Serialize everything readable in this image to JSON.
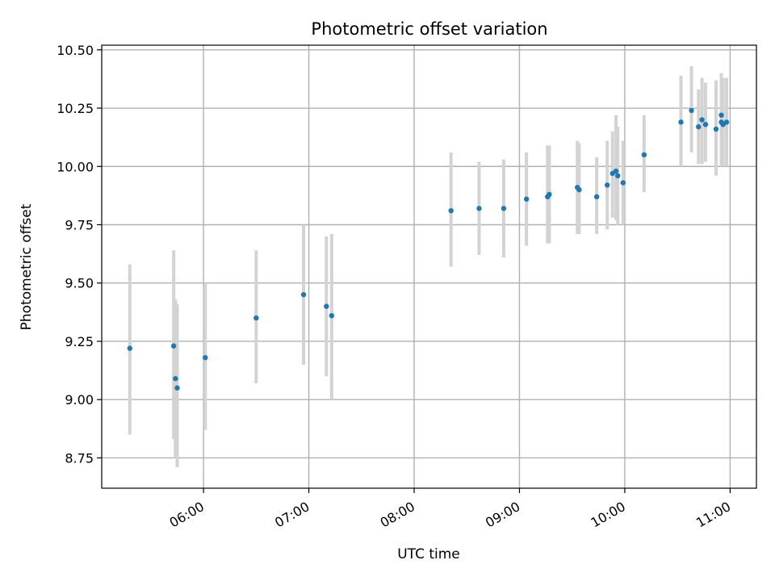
{
  "chart_data": {
    "type": "scatter",
    "title": "Photometric offset variation",
    "xlabel": "UTC time",
    "ylabel": "Photometric offset",
    "xlim": [
      "05:02",
      "11:15"
    ],
    "ylim": [
      8.62,
      10.52
    ],
    "x_ticks": [
      "06:00",
      "07:00",
      "08:00",
      "09:00",
      "10:00",
      "11:00"
    ],
    "y_ticks": [
      "8.75",
      "9.00",
      "9.25",
      "9.50",
      "9.75",
      "10.00",
      "10.25",
      "10.50"
    ],
    "grid": true,
    "colors": {
      "points": "#1f77b4",
      "error_bars": "#d3d3d3",
      "grid": "#b0b0b0"
    },
    "series": [
      {
        "points": [
          {
            "t": "05:18",
            "y": 9.22,
            "lo": 8.85,
            "hi": 9.58
          },
          {
            "t": "05:43",
            "y": 9.23,
            "lo": 8.83,
            "hi": 9.64
          },
          {
            "t": "05:44",
            "y": 9.09,
            "lo": 8.75,
            "hi": 9.43
          },
          {
            "t": "05:45",
            "y": 9.05,
            "lo": 8.71,
            "hi": 9.41
          },
          {
            "t": "06:01",
            "y": 9.18,
            "lo": 8.87,
            "hi": 9.5
          },
          {
            "t": "06:30",
            "y": 9.35,
            "lo": 9.07,
            "hi": 9.64
          },
          {
            "t": "06:57",
            "y": 9.45,
            "lo": 9.15,
            "hi": 9.75
          },
          {
            "t": "07:10",
            "y": 9.4,
            "lo": 9.1,
            "hi": 9.7
          },
          {
            "t": "07:13",
            "y": 9.36,
            "lo": 9.0,
            "hi": 9.71
          },
          {
            "t": "08:21",
            "y": 9.81,
            "lo": 9.57,
            "hi": 10.06
          },
          {
            "t": "08:37",
            "y": 9.82,
            "lo": 9.62,
            "hi": 10.02
          },
          {
            "t": "08:51",
            "y": 9.82,
            "lo": 9.61,
            "hi": 10.03
          },
          {
            "t": "09:04",
            "y": 9.86,
            "lo": 9.66,
            "hi": 10.06
          },
          {
            "t": "09:16",
            "y": 9.87,
            "lo": 9.67,
            "hi": 10.09
          },
          {
            "t": "09:17",
            "y": 9.88,
            "lo": 9.67,
            "hi": 10.09
          },
          {
            "t": "09:33",
            "y": 9.91,
            "lo": 9.71,
            "hi": 10.11
          },
          {
            "t": "09:34",
            "y": 9.9,
            "lo": 9.71,
            "hi": 10.1
          },
          {
            "t": "09:44",
            "y": 9.87,
            "lo": 9.71,
            "hi": 10.04
          },
          {
            "t": "09:50",
            "y": 9.92,
            "lo": 9.73,
            "hi": 10.11
          },
          {
            "t": "09:53",
            "y": 9.97,
            "lo": 9.78,
            "hi": 10.15
          },
          {
            "t": "09:55",
            "y": 9.98,
            "lo": 9.77,
            "hi": 10.22
          },
          {
            "t": "09:56",
            "y": 9.96,
            "lo": 9.75,
            "hi": 10.17
          },
          {
            "t": "09:59",
            "y": 9.93,
            "lo": 9.75,
            "hi": 10.11
          },
          {
            "t": "10:11",
            "y": 10.05,
            "lo": 9.89,
            "hi": 10.22
          },
          {
            "t": "10:32",
            "y": 10.19,
            "lo": 10.0,
            "hi": 10.39
          },
          {
            "t": "10:38",
            "y": 10.24,
            "lo": 10.06,
            "hi": 10.43
          },
          {
            "t": "10:42",
            "y": 10.17,
            "lo": 10.01,
            "hi": 10.33
          },
          {
            "t": "10:44",
            "y": 10.2,
            "lo": 10.01,
            "hi": 10.38
          },
          {
            "t": "10:46",
            "y": 10.18,
            "lo": 10.02,
            "hi": 10.36
          },
          {
            "t": "10:52",
            "y": 10.16,
            "lo": 9.96,
            "hi": 10.37
          },
          {
            "t": "10:55",
            "y": 10.19,
            "lo": 10.0,
            "hi": 10.39
          },
          {
            "t": "10:55",
            "y": 10.22,
            "lo": 10.01,
            "hi": 10.4
          },
          {
            "t": "10:56",
            "y": 10.18,
            "lo": 10.0,
            "hi": 10.38
          },
          {
            "t": "10:58",
            "y": 10.19,
            "lo": 10.0,
            "hi": 10.38
          }
        ]
      }
    ]
  }
}
